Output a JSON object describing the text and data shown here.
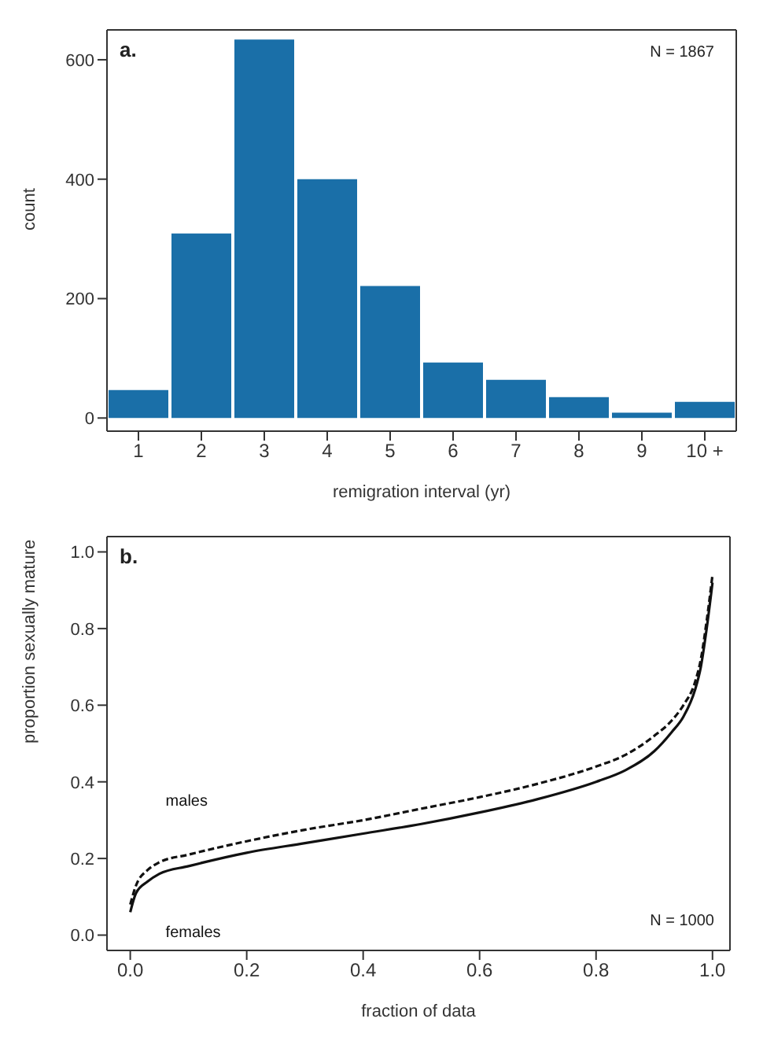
{
  "chart_data": [
    {
      "type": "bar",
      "categories": [
        "1",
        "2",
        "3",
        "4",
        "5",
        "6",
        "7",
        "8",
        "9",
        "10 +"
      ],
      "values": [
        47,
        309,
        634,
        400,
        221,
        93,
        64,
        35,
        9,
        27
      ],
      "color": "#1a6fa8",
      "xlabel": "remigration interval (yr)",
      "ylabel": "count",
      "ylim": [
        -22,
        650
      ],
      "yticks": [
        0,
        200,
        400,
        600
      ],
      "grid": false,
      "legend": false,
      "annotations": [
        "a.",
        "N = 1867"
      ]
    },
    {
      "type": "line",
      "xlabel": "fraction of data",
      "ylabel": "proportion sexually mature",
      "xlim": [
        -0.04,
        1.03
      ],
      "ylim": [
        -0.04,
        1.04
      ],
      "xticks": [
        {
          "value": 0,
          "label": "0.0"
        },
        0.2,
        0.4,
        0.6,
        0.8,
        {
          "value": 1,
          "label": "1.0"
        }
      ],
      "yticks": [
        {
          "value": 0,
          "label": "0.0"
        },
        0.2,
        0.4,
        0.6,
        0.8,
        {
          "value": 1,
          "label": "1.0"
        }
      ],
      "grid": false,
      "legend": false,
      "marker": "none",
      "annotations": [
        "b.",
        "N = 1000"
      ],
      "x": [
        0,
        0.01,
        0.03,
        0.05,
        0.1,
        0.2,
        0.3,
        0.4,
        0.5,
        0.6,
        0.7,
        0.8,
        0.85,
        0.9,
        0.93,
        0.95,
        0.97,
        0.98,
        0.99,
        1.0
      ],
      "series": [
        {
          "name": "males",
          "color": "#111111",
          "line_style": "dashed",
          "values": [
            0.08,
            0.13,
            0.17,
            0.19,
            0.21,
            0.245,
            0.275,
            0.3,
            0.33,
            0.36,
            0.395,
            0.44,
            0.47,
            0.52,
            0.56,
            0.6,
            0.66,
            0.72,
            0.82,
            0.94
          ]
        },
        {
          "name": "females",
          "color": "#111111",
          "line_style": "solid",
          "values": [
            0.06,
            0.11,
            0.14,
            0.16,
            0.18,
            0.215,
            0.24,
            0.265,
            0.29,
            0.32,
            0.355,
            0.4,
            0.43,
            0.48,
            0.53,
            0.57,
            0.64,
            0.7,
            0.8,
            0.92
          ]
        }
      ]
    }
  ]
}
